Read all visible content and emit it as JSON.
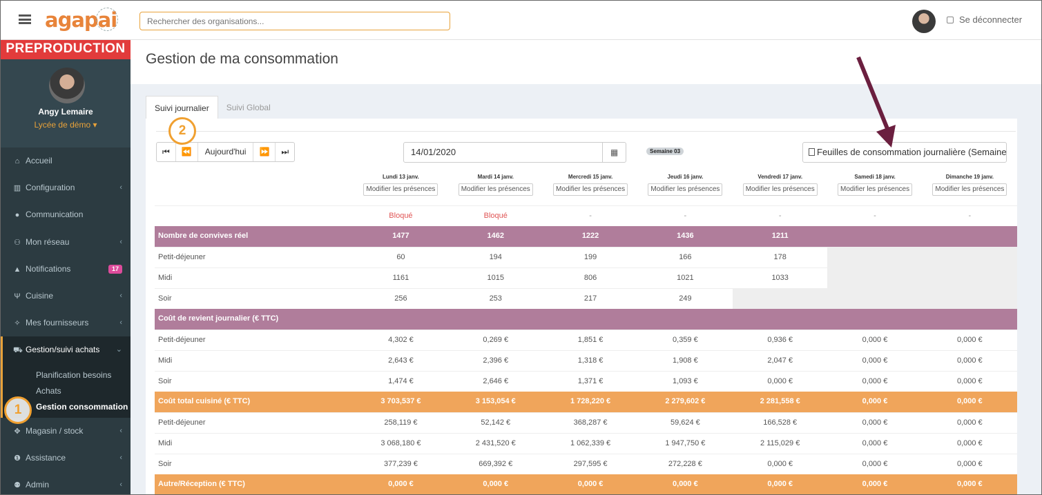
{
  "header": {
    "logo": "agapai",
    "search_placeholder": "Rechercher des organisations...",
    "logout_label": "Se déconnecter"
  },
  "sidebar": {
    "env_label": "PREPRODUCTION",
    "user_name": "Angy Lemaire",
    "user_org": "Lycée de démo ▾",
    "items": [
      {
        "label": "Accueil",
        "icon": "home-icon",
        "glyph": "⌂"
      },
      {
        "label": "Configuration",
        "icon": "bank-icon",
        "glyph": "▥",
        "chevron": "‹"
      },
      {
        "label": "Communication",
        "icon": "comments-icon",
        "glyph": "●",
        "chevron": ""
      },
      {
        "label": "Mon réseau",
        "icon": "users-icon",
        "glyph": "⚇",
        "chevron": "‹"
      },
      {
        "label": "Notifications",
        "icon": "bell-icon",
        "glyph": "▲",
        "badge": "17"
      },
      {
        "label": "Cuisine",
        "icon": "cutlery-icon",
        "glyph": "Ψ",
        "chevron": "‹"
      },
      {
        "label": "Mes fournisseurs",
        "icon": "handshake-icon",
        "glyph": "✧",
        "chevron": "‹"
      },
      {
        "label": "Gestion/suivi achats",
        "icon": "cart-icon",
        "glyph": "⛟",
        "chevron": "⌄"
      }
    ],
    "subitems": [
      "Planification besoins",
      "Achats",
      "Gestion consommation"
    ],
    "items_after": [
      {
        "label": "Magasin / stock",
        "icon": "cubes-icon",
        "glyph": "✥",
        "chevron": "‹"
      },
      {
        "label": "Assistance",
        "icon": "info-icon",
        "glyph": "❶",
        "chevron": "‹"
      },
      {
        "label": "Admin",
        "icon": "user-plus-icon",
        "glyph": "⚉",
        "chevron": "‹"
      }
    ]
  },
  "page": {
    "title": "Gestion de ma consommation",
    "tabs": [
      "Suivi journalier",
      "Suivi Global"
    ]
  },
  "toolbar": {
    "first": "⏮",
    "prev": "⏪",
    "today": "Aujourd'hui",
    "next": "⏩",
    "last": "⏭",
    "date": "14/01/2020",
    "week_badge": "Semaine 03",
    "export_label": "Feuilles de consommation journalière (Semaine)"
  },
  "days": [
    {
      "name": "Lundi 13 janv.",
      "button": "Modifier les présences",
      "status": "Bloqué"
    },
    {
      "name": "Mardi 14 janv.",
      "button": "Modifier les présences",
      "status": "Bloqué"
    },
    {
      "name": "Mercredi 15 janv.",
      "button": "Modifier les présences",
      "status": "-"
    },
    {
      "name": "Jeudi 16 janv.",
      "button": "Modifier les présences",
      "status": "-"
    },
    {
      "name": "Vendredi 17 janv.",
      "button": "Modifier les présences",
      "status": "-"
    },
    {
      "name": "Samedi 18 janv.",
      "button": "Modifier les présences",
      "status": "-"
    },
    {
      "name": "Dimanche 19 janv.",
      "button": "Modifier les présences",
      "status": "-"
    }
  ],
  "rows": [
    {
      "type": "purple",
      "label": "Nombre de convives réel",
      "values": [
        "1477",
        "1462",
        "1222",
        "1436",
        "1211",
        "",
        ""
      ]
    },
    {
      "type": "data",
      "label": "Petit-déjeuner",
      "values": [
        "60",
        "194",
        "199",
        "166",
        "178",
        "",
        ""
      ],
      "gray_from": 5
    },
    {
      "type": "data",
      "label": "Midi",
      "values": [
        "1161",
        "1015",
        "806",
        "1021",
        "1033",
        "",
        ""
      ],
      "gray_from": 5
    },
    {
      "type": "data",
      "label": "Soir",
      "values": [
        "256",
        "253",
        "217",
        "249",
        "",
        "",
        ""
      ],
      "gray_from": 4
    },
    {
      "type": "purple",
      "label": "Coût de revient journalier (€ TTC)",
      "values": [
        "",
        "",
        "",
        "",
        "",
        "",
        ""
      ]
    },
    {
      "type": "data",
      "label": "Petit-déjeuner",
      "values": [
        "4,302 €",
        "0,269 €",
        "1,851 €",
        "0,359 €",
        "0,936 €",
        "0,000 €",
        "0,000 €"
      ]
    },
    {
      "type": "data",
      "label": "Midi",
      "values": [
        "2,643 €",
        "2,396 €",
        "1,318 €",
        "1,908 €",
        "2,047 €",
        "0,000 €",
        "0,000 €"
      ]
    },
    {
      "type": "data",
      "label": "Soir",
      "values": [
        "1,474 €",
        "2,646 €",
        "1,371 €",
        "1,093 €",
        "0,000 €",
        "0,000 €",
        "0,000 €"
      ]
    },
    {
      "type": "orange",
      "label": "Coût total cuisiné (€ TTC)",
      "values": [
        "3 703,537 €",
        "3 153,054 €",
        "1 728,220 €",
        "2 279,602 €",
        "2 281,558 €",
        "0,000 €",
        "0,000 €"
      ]
    },
    {
      "type": "data",
      "label": "Petit-déjeuner",
      "values": [
        "258,119 €",
        "52,142 €",
        "368,287 €",
        "59,624 €",
        "166,528 €",
        "0,000 €",
        "0,000 €"
      ]
    },
    {
      "type": "data",
      "label": "Midi",
      "values": [
        "3 068,180 €",
        "2 431,520 €",
        "1 062,339 €",
        "1 947,750 €",
        "2 115,029 €",
        "0,000 €",
        "0,000 €"
      ]
    },
    {
      "type": "data",
      "label": "Soir",
      "values": [
        "377,239 €",
        "669,392 €",
        "297,595 €",
        "272,228 €",
        "0,000 €",
        "0,000 €",
        "0,000 €"
      ]
    },
    {
      "type": "orange",
      "label": "Autre/Réception (€ TTC)",
      "values": [
        "0,000 €",
        "0,000 €",
        "0,000 €",
        "0,000 €",
        "0,000 €",
        "0,000 €",
        "0,000 €"
      ]
    }
  ],
  "annotations": {
    "marker_1": "1",
    "marker_2": "2"
  },
  "colors": {
    "accent": "#e8843a",
    "purple_row": "#b07d9b",
    "orange_row": "#f0a55b",
    "sidebar": "#2c3b41",
    "arrow": "#6b1f3f"
  }
}
